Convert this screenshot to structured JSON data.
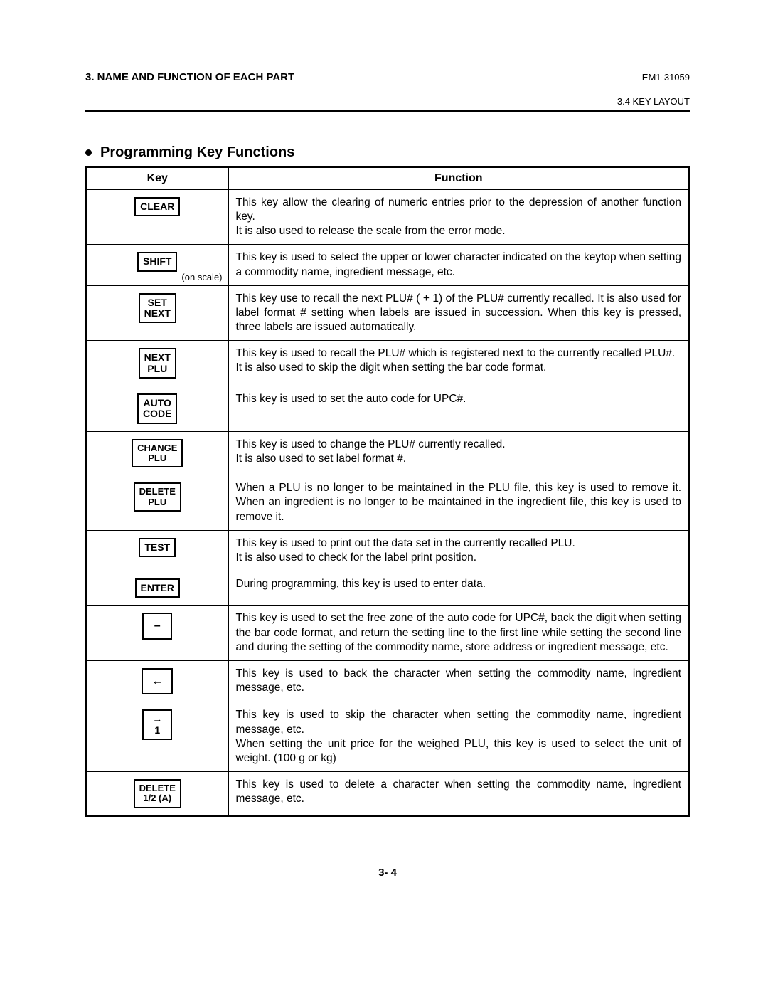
{
  "header": {
    "section": "3. NAME AND FUNCTION OF EACH PART",
    "doc_id": "EM1-31059",
    "subheading": "3.4 KEY LAYOUT"
  },
  "subtitle": "Programming Key Functions",
  "table": {
    "col_key": "Key",
    "col_func": "Function",
    "rows": [
      {
        "key_lines": [
          "CLEAR"
        ],
        "note": "",
        "func": "This key allow the clearing of numeric entries prior to the depression of another function key.\nIt is also used to release the scale from the error mode."
      },
      {
        "key_lines": [
          "SHIFT"
        ],
        "note": "(on scale)",
        "func": "This key is used to select the upper or lower character indicated on the keytop when setting a commodity name, ingredient message, etc."
      },
      {
        "key_lines": [
          "SET",
          "NEXT"
        ],
        "note": "",
        "func": "This key use to recall the next PLU# ( + 1) of the PLU# currently recalled. It is also used for label format # setting when labels are issued in succession.  When this key is pressed, three labels are issued automatically."
      },
      {
        "key_lines": [
          "NEXT",
          "PLU"
        ],
        "note": "",
        "func": "This key is used to recall the PLU# which is registered next to the currently recalled PLU#.\nIt is also used to skip the digit when setting the bar code format."
      },
      {
        "key_lines": [
          "AUTO",
          "CODE"
        ],
        "note": "",
        "func": "This key is used to set the auto code for UPC#."
      },
      {
        "key_lines": [
          "CHANGE",
          "PLU"
        ],
        "note": "",
        "func": "This key is used to change the PLU# currently recalled.\nIt is also used to set label format #."
      },
      {
        "key_lines": [
          "DELETE",
          "PLU"
        ],
        "note": "",
        "func": "When a PLU is no longer to be maintained in the PLU file, this key is used to remove it.  When an ingredient is no longer to be maintained in the ingredient file, this key is used to remove it."
      },
      {
        "key_lines": [
          "TEST"
        ],
        "note": "",
        "func": "This key is used to print out the data set in the currently recalled PLU.\nIt is also used to check for the label print position."
      },
      {
        "key_lines": [
          "ENTER"
        ],
        "note": "",
        "func": "During programming, this key is used to enter data."
      },
      {
        "key_lines": [
          "–"
        ],
        "note": "",
        "big": true,
        "func": "This key is used to set the free zone of the auto code for UPC#, back the digit when setting the bar code format, and return the setting line to the first line while setting the second line and during the setting of the commodity name, store address or ingredient message, etc."
      },
      {
        "key_lines": [
          "←"
        ],
        "note": "",
        "big": true,
        "func": "This key is used to back the character when setting the commodity name, ingredient message, etc."
      },
      {
        "key_lines": [
          "→",
          "1"
        ],
        "note": "",
        "func": "This key is used to skip the character when setting the commodity name, ingredient message, etc.\nWhen setting the unit price for the weighed PLU, this key is used to select the unit of weight.  (100 g or kg)"
      },
      {
        "key_lines": [
          "DELETE",
          "1/2 (A)"
        ],
        "note": "",
        "func": "This key is used to delete a character when setting the commodity name, ingredient message, etc."
      }
    ]
  },
  "page_number": "3- 4"
}
